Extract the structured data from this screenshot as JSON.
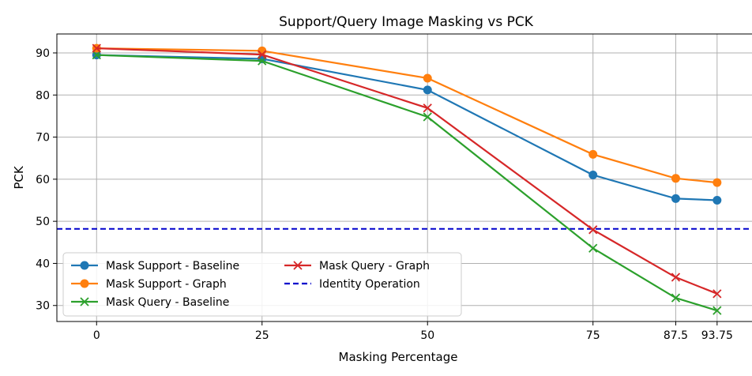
{
  "chart_data": {
    "type": "line",
    "title": "Support/Query Image Masking vs PCK",
    "xlabel": "Masking Percentage",
    "ylabel": "PCK",
    "x_tick_labels": [
      "0",
      "25",
      "50",
      "75",
      "87.5",
      "93.75"
    ],
    "x": [
      0,
      25,
      50,
      75,
      87.5,
      93.75
    ],
    "y_ticks": [
      30,
      40,
      50,
      60,
      70,
      80,
      90
    ],
    "xlim": [
      -6,
      99.5
    ],
    "ylim": [
      26.2,
      94.5
    ],
    "grid": true,
    "legend_position": "lower-left",
    "series": [
      {
        "name": "Mask Support - Baseline",
        "color": "#1f77b4",
        "marker": "circle",
        "values": [
          89.5,
          88.6,
          81.2,
          61.0,
          55.4,
          55.0
        ]
      },
      {
        "name": "Mask Support - Graph",
        "color": "#ff7f0e",
        "marker": "circle",
        "values": [
          91.1,
          90.5,
          84.0,
          65.9,
          60.2,
          59.2
        ]
      },
      {
        "name": "Mask Query - Baseline",
        "color": "#2ca02c",
        "marker": "x",
        "values": [
          89.5,
          88.1,
          74.8,
          43.6,
          31.8,
          28.8
        ]
      },
      {
        "name": "Mask Query - Graph",
        "color": "#d62728",
        "marker": "x",
        "values": [
          91.1,
          89.6,
          76.9,
          48.0,
          36.7,
          32.8
        ]
      }
    ],
    "reference_lines": [
      {
        "name": "Identity Operation",
        "color": "#0000cc",
        "style": "dashed",
        "y": 48.2
      }
    ]
  }
}
